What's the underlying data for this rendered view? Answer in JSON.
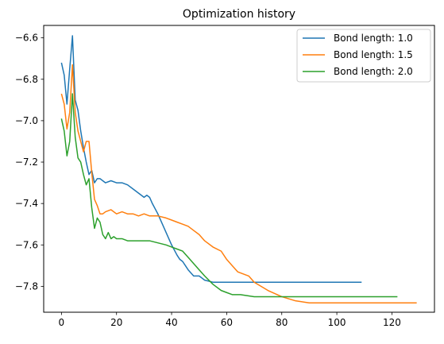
{
  "chart_data": {
    "type": "line",
    "title": "Optimization history",
    "xlabel": "",
    "ylabel": "",
    "xlim": [
      -6.45,
      135.45
    ],
    "ylim": [
      -7.925,
      -6.54
    ],
    "xticks": [
      0,
      20,
      40,
      60,
      80,
      100,
      120
    ],
    "yticks": [
      -7.8,
      -7.6,
      -7.4,
      -7.2,
      -7.0,
      -6.8,
      -6.6
    ],
    "grid": false,
    "legend": "top-right",
    "series": [
      {
        "name": "Bond length: 1.0",
        "color": "#1f77b4",
        "x": [
          0,
          1,
          2,
          3,
          4,
          5,
          6,
          7,
          8,
          9,
          10,
          11,
          12,
          13,
          14,
          15,
          16,
          18,
          20,
          22,
          24,
          26,
          28,
          30,
          31,
          32,
          33,
          35,
          37,
          40,
          42,
          43,
          44,
          45,
          46,
          48,
          50,
          52,
          55,
          60,
          70,
          80,
          90,
          100,
          109
        ],
        "y": [
          -6.72,
          -6.78,
          -6.92,
          -6.75,
          -6.59,
          -6.9,
          -6.95,
          -7.05,
          -7.13,
          -7.2,
          -7.26,
          -7.24,
          -7.3,
          -7.28,
          -7.28,
          -7.29,
          -7.3,
          -7.29,
          -7.3,
          -7.3,
          -7.31,
          -7.33,
          -7.35,
          -7.37,
          -7.36,
          -7.37,
          -7.4,
          -7.45,
          -7.51,
          -7.6,
          -7.65,
          -7.67,
          -7.68,
          -7.7,
          -7.72,
          -7.75,
          -7.75,
          -7.77,
          -7.78,
          -7.78,
          -7.78,
          -7.78,
          -7.78,
          -7.78,
          -7.78
        ]
      },
      {
        "name": "Bond length: 1.5",
        "color": "#ff7f0e",
        "x": [
          0,
          1,
          2,
          3,
          4,
          5,
          6,
          7,
          8,
          9,
          10,
          11,
          12,
          13,
          14,
          15,
          16,
          18,
          20,
          22,
          24,
          26,
          28,
          30,
          32,
          35,
          38,
          40,
          42,
          44,
          46,
          48,
          50,
          52,
          55,
          58,
          60,
          62,
          64,
          66,
          68,
          70,
          75,
          80,
          85,
          90,
          100,
          110,
          120,
          129
        ],
        "y": [
          -6.87,
          -6.92,
          -7.04,
          -6.96,
          -6.73,
          -6.96,
          -7.05,
          -7.1,
          -7.15,
          -7.1,
          -7.1,
          -7.25,
          -7.38,
          -7.41,
          -7.45,
          -7.45,
          -7.44,
          -7.43,
          -7.45,
          -7.44,
          -7.45,
          -7.45,
          -7.46,
          -7.45,
          -7.46,
          -7.46,
          -7.47,
          -7.48,
          -7.49,
          -7.5,
          -7.51,
          -7.53,
          -7.55,
          -7.58,
          -7.61,
          -7.63,
          -7.67,
          -7.7,
          -7.73,
          -7.74,
          -7.75,
          -7.78,
          -7.82,
          -7.85,
          -7.87,
          -7.88,
          -7.88,
          -7.88,
          -7.88,
          -7.88
        ]
      },
      {
        "name": "Bond length: 2.0",
        "color": "#2ca02c",
        "x": [
          0,
          1,
          2,
          3,
          4,
          5,
          6,
          7,
          8,
          9,
          10,
          11,
          12,
          13,
          14,
          15,
          16,
          17,
          18,
          19,
          20,
          22,
          24,
          26,
          28,
          30,
          32,
          35,
          38,
          40,
          42,
          44,
          46,
          48,
          50,
          52,
          55,
          58,
          60,
          62,
          65,
          70,
          80,
          90,
          100,
          110,
          122
        ],
        "y": [
          -6.99,
          -7.05,
          -7.17,
          -7.1,
          -6.87,
          -7.08,
          -7.18,
          -7.2,
          -7.26,
          -7.31,
          -7.28,
          -7.42,
          -7.52,
          -7.47,
          -7.49,
          -7.55,
          -7.57,
          -7.54,
          -7.57,
          -7.56,
          -7.57,
          -7.57,
          -7.58,
          -7.58,
          -7.58,
          -7.58,
          -7.58,
          -7.59,
          -7.6,
          -7.61,
          -7.62,
          -7.63,
          -7.66,
          -7.69,
          -7.72,
          -7.75,
          -7.79,
          -7.82,
          -7.83,
          -7.84,
          -7.84,
          -7.85,
          -7.85,
          -7.85,
          -7.85,
          -7.85,
          -7.85
        ]
      }
    ]
  }
}
